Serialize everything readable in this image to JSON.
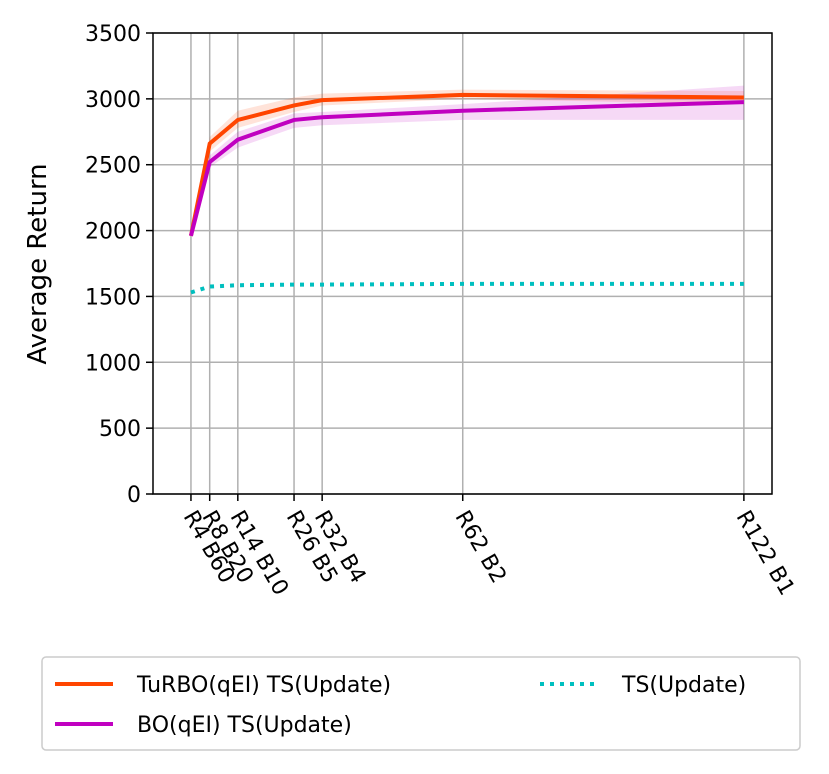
{
  "chart_data": {
    "type": "line",
    "y_label": "Average Return",
    "x": [
      4,
      8,
      14,
      26,
      32,
      62,
      122
    ],
    "xlim": [
      -4.1,
      128
    ],
    "xticks": [
      {
        "value": 4,
        "label": "R4 B60"
      },
      {
        "value": 8,
        "label": "R8 B20"
      },
      {
        "value": 14,
        "label": "R14 B10"
      },
      {
        "value": 26,
        "label": "R26 B5"
      },
      {
        "value": 32,
        "label": "R32 B4"
      },
      {
        "value": 62,
        "label": "R62 B2"
      },
      {
        "value": 122,
        "label": "R122 B1"
      }
    ],
    "ylim": [
      0,
      3500
    ],
    "yticks": [
      0,
      500,
      1000,
      1500,
      2000,
      2500,
      3000,
      3500
    ],
    "grid": true,
    "legend_position": "bottom",
    "series": [
      {
        "name": "TuRBO(qEI) TS(Update)",
        "color": "#ff4500",
        "style": "solid",
        "values": [
          1960,
          2660,
          2840,
          2950,
          2990,
          3030,
          3010
        ],
        "lower": [
          1950,
          2600,
          2780,
          2900,
          2950,
          3000,
          2960
        ],
        "upper": [
          1970,
          2710,
          2910,
          3010,
          3040,
          3070,
          3060
        ]
      },
      {
        "name": "BO(qEI) TS(Update)",
        "color": "#c000c0",
        "style": "solid",
        "values": [
          1960,
          2520,
          2690,
          2840,
          2860,
          2910,
          2975
        ],
        "lower": [
          1950,
          2480,
          2630,
          2780,
          2800,
          2840,
          2840
        ],
        "upper": [
          1970,
          2570,
          2750,
          2890,
          2900,
          2960,
          3100
        ]
      },
      {
        "name": "TS(Update)",
        "color": "#00bfbf",
        "style": "dotted",
        "values": [
          1530,
          1575,
          1585,
          1590,
          1590,
          1595,
          1595
        ]
      }
    ]
  }
}
